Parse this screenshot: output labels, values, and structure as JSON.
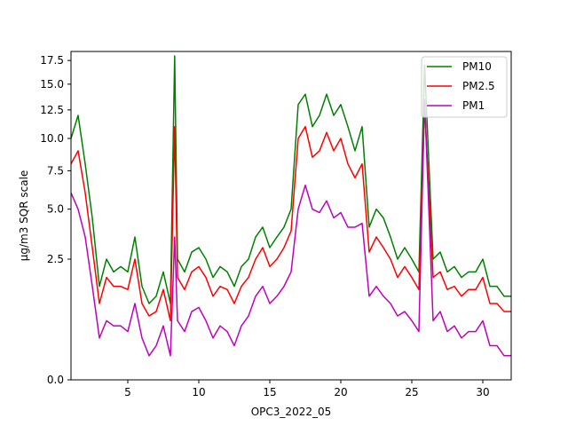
{
  "chart_data": {
    "type": "line",
    "title": "",
    "xlabel": "OPC3_2022_05",
    "ylabel": "µg/m3 SQR scale",
    "xlim": [
      1,
      32
    ],
    "ylim": [
      0,
      18.5
    ],
    "y_scale": "sqrt",
    "grid": false,
    "legend_position": "top-right",
    "x_ticks": [
      5,
      10,
      15,
      20,
      25,
      30
    ],
    "x_tick_labels": [
      "5",
      "10",
      "15",
      "20",
      "25",
      "30"
    ],
    "y_ticks": [
      0,
      2.5,
      5,
      7.5,
      10,
      12.5,
      15,
      17.5
    ],
    "y_tick_labels": [
      "0.0",
      "2.5",
      "5.0",
      "7.5",
      "10.0",
      "12.5",
      "15.0",
      "17.5"
    ],
    "x": [
      1,
      1.5,
      2,
      2.5,
      3,
      3.5,
      4,
      4.5,
      5,
      5.5,
      6,
      6.5,
      7,
      7.5,
      8,
      8.3,
      8.5,
      9,
      9.5,
      10,
      10.5,
      11,
      11.5,
      12,
      12.5,
      13,
      13.5,
      14,
      14.5,
      15,
      15.5,
      16,
      16.5,
      17,
      17.5,
      18,
      18.5,
      19,
      19.5,
      20,
      20.5,
      21,
      21.5,
      22,
      22.5,
      23,
      23.5,
      24,
      24.5,
      25,
      25.5,
      25.9,
      26.5,
      27,
      27.5,
      28,
      28.5,
      29,
      29.5,
      30,
      30.5,
      31,
      31.5,
      32
    ],
    "series": [
      {
        "name": "PM10",
        "color": "#008000",
        "values": [
          10,
          12,
          8,
          4.5,
          1.5,
          2.5,
          2,
          2.2,
          2,
          3.5,
          1.5,
          1,
          1.2,
          2,
          1,
          18,
          2.5,
          2,
          2.8,
          3,
          2.5,
          1.8,
          2.2,
          2,
          1.5,
          2.2,
          2.5,
          3.5,
          4,
          3,
          3.5,
          4,
          5,
          13,
          14,
          11,
          12,
          14,
          12,
          13,
          11,
          9,
          11,
          4,
          5,
          4.5,
          3.5,
          2.5,
          3,
          2.5,
          2,
          17,
          2.5,
          2.8,
          2,
          2.2,
          1.8,
          2,
          2,
          2.5,
          1.5,
          1.5,
          1.2,
          1.2
        ]
      },
      {
        "name": "PM2.5",
        "color": "#ff0000",
        "values": [
          8,
          9,
          6,
          3,
          1,
          1.8,
          1.5,
          1.5,
          1.4,
          2.5,
          1,
          0.7,
          0.8,
          1.4,
          0.6,
          11,
          1.8,
          1.4,
          2,
          2.2,
          1.8,
          1.2,
          1.5,
          1.4,
          1,
          1.5,
          1.8,
          2.5,
          3,
          2.2,
          2.5,
          3,
          3.8,
          10,
          11,
          8.5,
          9,
          10.5,
          9,
          10,
          8,
          7,
          8,
          2.8,
          3.5,
          3,
          2.5,
          1.8,
          2.2,
          1.8,
          1.4,
          13,
          1.8,
          2,
          1.4,
          1.5,
          1.2,
          1.4,
          1.4,
          1.8,
          1,
          1,
          0.8,
          0.8
        ]
      },
      {
        "name": "PM1",
        "color": "#bf00bf",
        "values": [
          6,
          5,
          3.5,
          1.5,
          0.3,
          0.6,
          0.5,
          0.5,
          0.4,
          1,
          0.3,
          0.1,
          0.2,
          0.5,
          0.1,
          3.5,
          0.6,
          0.4,
          0.8,
          0.9,
          0.6,
          0.3,
          0.5,
          0.4,
          0.2,
          0.5,
          0.7,
          1.2,
          1.5,
          1,
          1.2,
          1.5,
          2,
          5,
          6.5,
          5,
          4.8,
          5.5,
          4.5,
          4.8,
          4,
          4,
          4.2,
          1.2,
          1.5,
          1.2,
          1,
          0.7,
          0.8,
          0.6,
          0.4,
          13.5,
          0.6,
          0.8,
          0.4,
          0.5,
          0.3,
          0.4,
          0.4,
          0.6,
          0.2,
          0.2,
          0.1,
          0.1
        ]
      }
    ]
  }
}
